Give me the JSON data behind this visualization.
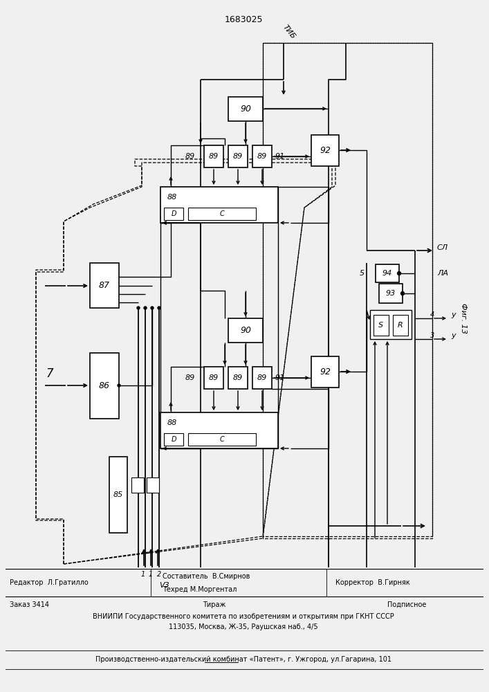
{
  "title": "1683025",
  "background": "#f0f0f0",
  "lc": "black",
  "labels": {
    "tib": "ТИБ",
    "sl": "СЛ",
    "la": "ЛА",
    "fig": "Фиг. 13",
    "block7": "7"
  },
  "footer": {
    "editor": "Редактор  Л.Гратилло",
    "composer": "Составитель  В.Смирнов",
    "techred": "Техред М.Моргентал",
    "corrector": "Корректор  В.Гирняк",
    "order": "Заказ 3414",
    "tirazh": "Тираж",
    "podpisnoe": "Подписное",
    "vniip1": "ВНИИПИ Государственного комитета по изобретениям и открытиям при ГКНТ СССР",
    "vniip2": "113035, Москва, Ж-35, Раушская наб., 4/5",
    "zavod": "Производственно-издательский комбинат «Патент», г. Ужгород, ул.Гагарина, 101"
  }
}
